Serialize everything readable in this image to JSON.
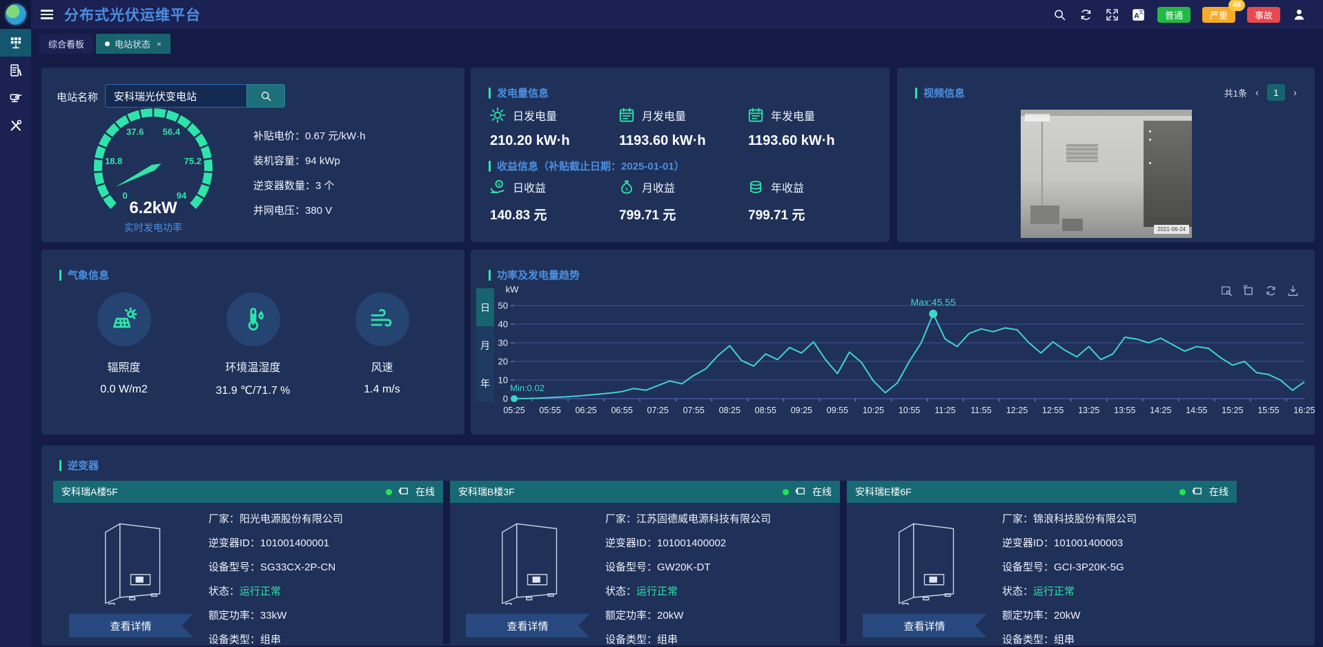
{
  "colors": {
    "accent_teal": "#2ee5a9",
    "title_blue": "#4c8fe0",
    "chart_line": "#3fd6ce",
    "tab_active": "#17646e",
    "status_green": "#2ee5a9"
  },
  "header": {
    "title": "分布式光伏运维平台",
    "icons": [
      "search-icon",
      "refresh-icon",
      "fullscreen-icon",
      "translate-icon"
    ],
    "alarm_buttons": [
      {
        "label": "普通",
        "color": "#21ba45",
        "count": ""
      },
      {
        "label": "严重",
        "color": "#f5ab2a",
        "count": "48"
      },
      {
        "label": "事故",
        "color": "#e8494e",
        "count": ""
      }
    ],
    "user_icon": "user-icon"
  },
  "sidebar": {
    "items": [
      {
        "icon": "dashboard-grid-icon",
        "active": true
      },
      {
        "icon": "report-document-icon",
        "active": false
      },
      {
        "icon": "camera-monitor-icon",
        "active": false
      },
      {
        "icon": "tools-wrench-icon",
        "active": false
      }
    ]
  },
  "tabs": [
    {
      "label": "综合看板",
      "active": false,
      "closable": false
    },
    {
      "label": "电站状态",
      "active": true,
      "closable": true
    }
  ],
  "station_panel": {
    "search_label": "电站名称",
    "search_value": "安科瑞光伏变电站",
    "gauge": {
      "value": "6.2kW",
      "caption": "实时发电功率",
      "value_num": 6.2,
      "max": 94,
      "ticks": [
        "0",
        "18.8",
        "37.6",
        "56.4",
        "75.2",
        "94"
      ]
    },
    "stats": [
      {
        "label": "补贴电价",
        "value": "0.67 元/kW·h"
      },
      {
        "label": "装机容量",
        "value": "94 kWp"
      },
      {
        "label": "逆变器数量",
        "value": "3 个"
      },
      {
        "label": "并网电压",
        "value": "380 V"
      }
    ]
  },
  "generation_panel": {
    "title": "发电量信息",
    "items": [
      {
        "icon": "sun-icon",
        "label": "日发电量",
        "value": "210.20 kW·h"
      },
      {
        "icon": "calendar-icon",
        "label": "月发电量",
        "value": "1193.60 kW·h"
      },
      {
        "icon": "calendar-icon",
        "label": "年发电量",
        "value": "1193.60 kW·h"
      }
    ],
    "income_title": "收益信息（补贴截止日期：2025-01-01）",
    "income_items": [
      {
        "icon": "coin-hand-icon",
        "label": "日收益",
        "value": "140.83 元"
      },
      {
        "icon": "money-bag-icon",
        "label": "月收益",
        "value": "799.71 元"
      },
      {
        "icon": "coins-icon",
        "label": "年收益",
        "value": "799.71 元"
      }
    ]
  },
  "video_panel": {
    "title": "视频信息",
    "total": "共1条",
    "page": "1",
    "prev": "‹",
    "next": "›",
    "timestamp": "2021-06-24"
  },
  "weather_panel": {
    "title": "气象信息",
    "items": [
      {
        "icon": "solar-irradiance-icon",
        "label": "辐照度",
        "value": "0.0 W/m2"
      },
      {
        "icon": "thermometer-icon",
        "label": "环境温湿度",
        "value": "31.9 ℃/71.7 %"
      },
      {
        "icon": "wind-icon",
        "label": "风速",
        "value": "1.4 m/s"
      }
    ]
  },
  "chart_panel": {
    "title": "功率及发电量趋势",
    "tabs": [
      "日",
      "月",
      "年"
    ],
    "active_tab": "日",
    "toolbar_icons": [
      "zoom-box-icon",
      "zoom-restore-icon",
      "chart-refresh-icon",
      "download-icon"
    ]
  },
  "chart_data": {
    "type": "line",
    "title": "功率及发电量趋势",
    "ylabel": "kW",
    "ylim": [
      0,
      50
    ],
    "yticks": [
      0,
      10,
      20,
      30,
      40,
      50
    ],
    "grid": true,
    "x_labels": [
      "05:25",
      "05:55",
      "06:25",
      "06:55",
      "07:25",
      "07:55",
      "08:25",
      "08:55",
      "09:25",
      "09:55",
      "10:25",
      "10:55",
      "11:25",
      "11:55",
      "12:25",
      "12:55",
      "13:25",
      "13:55",
      "14:25",
      "14:55",
      "15:25",
      "15:55",
      "16:25"
    ],
    "series": [
      {
        "name": "功率",
        "interval_min": 10,
        "x_start": "05:25",
        "values": [
          0.02,
          0.1,
          0.3,
          0.6,
          0.9,
          1.3,
          1.8,
          2.4,
          3,
          3.8,
          5.5,
          4.5,
          7,
          9.5,
          8,
          12.5,
          16,
          23,
          28.5,
          20.5,
          17.5,
          24,
          21,
          27.5,
          24.5,
          30.5,
          21,
          13.5,
          25,
          19.5,
          9.5,
          3.2,
          8.5,
          20,
          30,
          45.55,
          32,
          28,
          35,
          37.5,
          36,
          38,
          37,
          30,
          24.5,
          30.5,
          26,
          22.5,
          28,
          21,
          24,
          33,
          32,
          30,
          32.5,
          29,
          25.5,
          28,
          27,
          22,
          18,
          20,
          14,
          13,
          10,
          4.5,
          9
        ]
      }
    ],
    "annotations": {
      "max": {
        "label": "Max:45.55",
        "value": 45.55
      },
      "min": {
        "label": "Min:0.02",
        "value": 0.02
      }
    },
    "line_color": "#3fd6ce",
    "legend_position": "none"
  },
  "inverter_panel": {
    "title": "逆变器",
    "online_label": "在线",
    "detail_button": "查看详情",
    "cards": [
      {
        "name": "安科瑞A楼5F",
        "fields": [
          {
            "label": "厂家",
            "value": "阳光电源股份有限公司"
          },
          {
            "label": "逆变器ID",
            "value": "101001400001"
          },
          {
            "label": "设备型号",
            "value": "SG33CX-2P-CN"
          },
          {
            "label": "状态",
            "value": "运行正常",
            "highlight": true
          },
          {
            "label": "额定功率",
            "value": "33kW"
          },
          {
            "label": "设备类型",
            "value": "组串"
          }
        ]
      },
      {
        "name": "安科瑞B楼3F",
        "fields": [
          {
            "label": "厂家",
            "value": "江苏固德威电源科技有限公司"
          },
          {
            "label": "逆变器ID",
            "value": "101001400002"
          },
          {
            "label": "设备型号",
            "value": "GW20K-DT"
          },
          {
            "label": "状态",
            "value": "运行正常",
            "highlight": true
          },
          {
            "label": "额定功率",
            "value": "20kW"
          },
          {
            "label": "设备类型",
            "value": "组串"
          }
        ]
      },
      {
        "name": "安科瑞E楼6F",
        "fields": [
          {
            "label": "厂家",
            "value": "锦浪科技股份有限公司"
          },
          {
            "label": "逆变器ID",
            "value": "101001400003"
          },
          {
            "label": "设备型号",
            "value": "GCI-3P20K-5G"
          },
          {
            "label": "状态",
            "value": "运行正常",
            "highlight": true
          },
          {
            "label": "额定功率",
            "value": "20kW"
          },
          {
            "label": "设备类型",
            "value": "组串"
          }
        ]
      }
    ]
  }
}
